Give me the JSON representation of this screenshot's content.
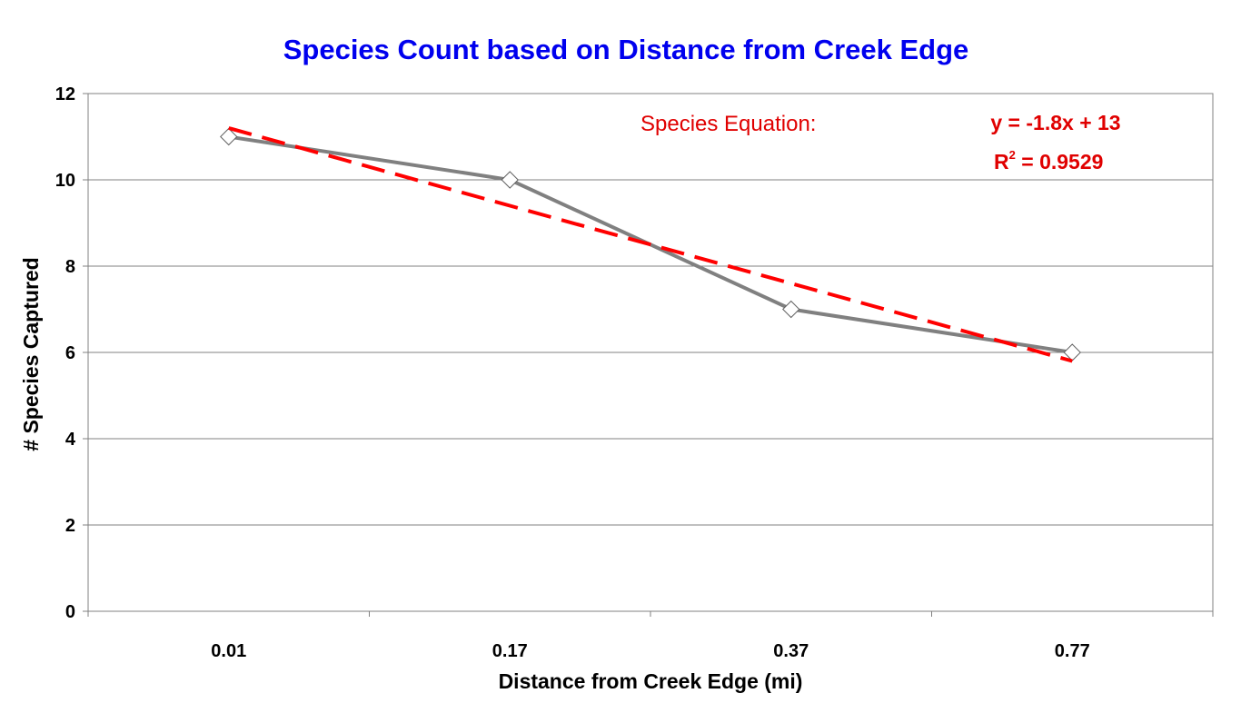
{
  "chart_data": {
    "type": "line",
    "title": "Species Count based on Distance from Creek Edge",
    "xlabel": "Distance from Creek Edge (mi)",
    "ylabel": "# Species Captured",
    "categories": [
      "0.01",
      "0.17",
      "0.37",
      "0.77"
    ],
    "series": [
      {
        "name": "Species",
        "values": [
          11,
          10,
          7,
          6
        ],
        "color": "#808080",
        "marker": "diamond"
      }
    ],
    "trendline": {
      "type": "linear",
      "slope": -1.8,
      "intercept": 13,
      "color": "#ff0000",
      "style": "dashed",
      "label": "Species Equation:",
      "equation": "y = -1.8x + 13",
      "r2_prefix": "R",
      "r2_sup": "2",
      "r2_value": " = 0.9529"
    },
    "yticks": [
      "0",
      "2",
      "4",
      "6",
      "8",
      "10",
      "12"
    ],
    "ylim": [
      0,
      12
    ],
    "grid": true
  }
}
